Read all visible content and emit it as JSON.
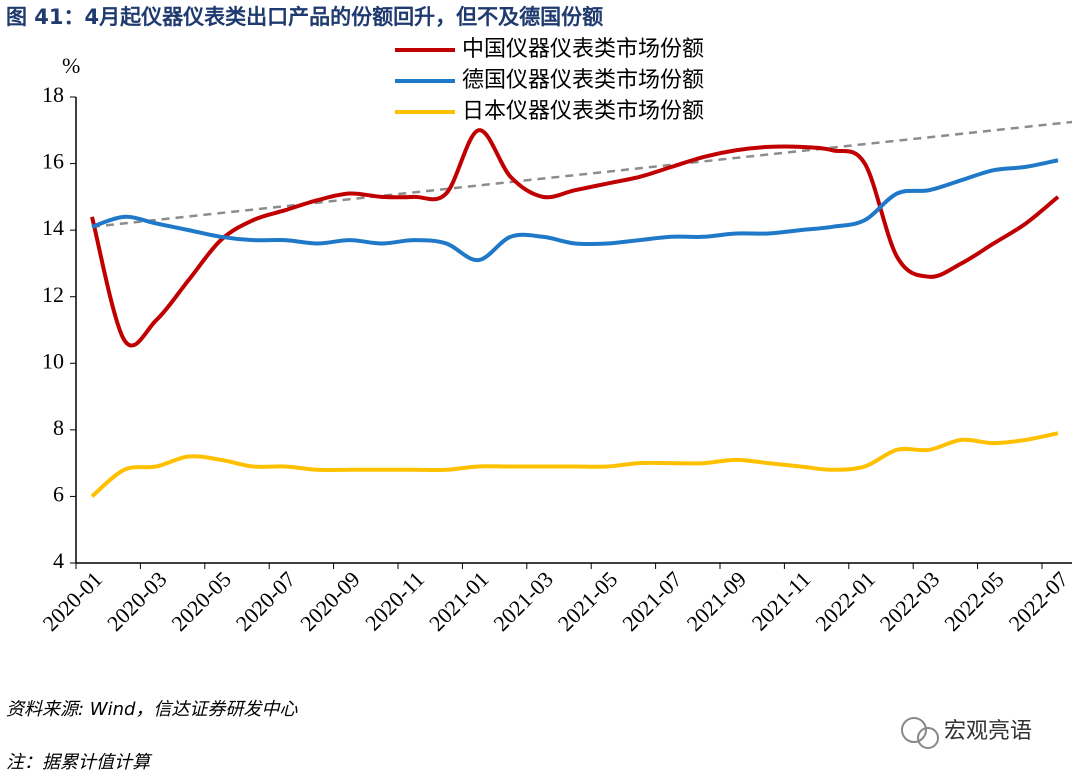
{
  "chart_data": {
    "type": "line",
    "title": "图 41：4月起仪器仪表类出口产品的份额回升，但不及德国份额",
    "y_unit": "%",
    "categories": [
      "2020-01",
      null,
      "2020-03",
      null,
      "2020-05",
      null,
      "2020-07",
      null,
      "2020-09",
      null,
      "2020-11",
      null,
      "2021-01",
      null,
      "2021-03",
      null,
      "2021-05",
      null,
      "2021-07",
      null,
      "2021-09",
      null,
      "2021-11",
      null,
      "2022-01",
      null,
      "2022-03",
      null,
      "2022-05",
      null,
      "2022-07"
    ],
    "series": [
      {
        "name": "中国仪器仪表类市场份额",
        "color": "#c00000",
        "values": [
          14.4,
          10.7,
          11.3,
          12.5,
          13.7,
          14.3,
          14.6,
          14.9,
          15.1,
          15.0,
          15.0,
          15.1,
          17.0,
          15.6,
          15.0,
          15.2,
          15.4,
          15.6,
          15.9,
          16.2,
          16.4,
          16.5,
          16.5,
          16.4,
          16.0,
          13.2,
          12.6,
          13.0,
          13.6,
          14.2,
          15.0
        ]
      },
      {
        "name": "德国仪器仪表类市场份额",
        "color": "#1f78c8",
        "values": [
          14.1,
          14.4,
          14.2,
          14.0,
          13.8,
          13.7,
          13.7,
          13.6,
          13.7,
          13.6,
          13.7,
          13.6,
          13.1,
          13.8,
          13.8,
          13.6,
          13.6,
          13.7,
          13.8,
          13.8,
          13.9,
          13.9,
          14.0,
          14.1,
          14.3,
          15.1,
          15.2,
          15.5,
          15.8,
          15.9,
          16.1
        ]
      },
      {
        "name": "日本仪器仪表类市场份额",
        "color": "#ffc000",
        "values": [
          6.0,
          6.8,
          6.9,
          7.2,
          7.1,
          6.9,
          6.9,
          6.8,
          6.8,
          6.8,
          6.8,
          6.8,
          6.9,
          6.9,
          6.9,
          6.9,
          6.9,
          7.0,
          7.0,
          7.0,
          7.1,
          7.0,
          6.9,
          6.8,
          6.9,
          7.4,
          7.4,
          7.7,
          7.6,
          7.7,
          7.9
        ]
      }
    ],
    "trendline": {
      "start": 14.1,
      "end": 17.25,
      "color": "#8c8c8c"
    },
    "ylim": [
      4,
      18
    ],
    "yticks": [
      4,
      6,
      8,
      10,
      12,
      14,
      16,
      18
    ],
    "source": "资料来源: Wind，信达证券研发中心",
    "note": "注：据累计值计算",
    "watermark": "宏观亮语"
  }
}
